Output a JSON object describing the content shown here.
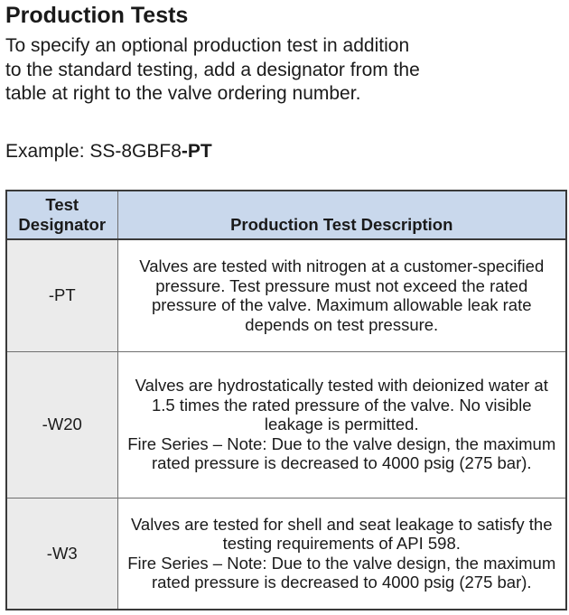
{
  "heading": "Production Tests",
  "intro": "To specify an optional production test in addition to the standard testing, add a designator from the table at right to the valve ordering number.",
  "example": {
    "prefix": "Example: SS-8GBF8",
    "suffix": "-PT"
  },
  "table": {
    "headers": {
      "designator_line1": "Test",
      "designator_line2": "Designator",
      "description": "Production Test Description"
    },
    "rows": [
      {
        "designator": "-PT",
        "description": [
          "Valves are tested with nitrogen at a customer-specified pressure. Test pressure must not exceed the rated pressure of the valve. Maximum allowable leak rate depends on test pressure."
        ]
      },
      {
        "designator": "-W20",
        "description": [
          "Valves are hydrostatically tested with deionized water at 1.5 times the rated pressure of the valve. No visible leakage is permitted.",
          "Fire Series – Note: Due to the valve design, the maximum rated pressure is decreased to 4000 psig (275 bar)."
        ]
      },
      {
        "designator": "-W3",
        "description": [
          "Valves are tested for shell and seat leakage to satisfy the testing requirements of API 598.",
          "Fire Series – Note: Due to the valve design, the maximum rated pressure is decreased to 4000 psig (275 bar)."
        ]
      }
    ]
  },
  "colors": {
    "header_fill": "#c9d8ec",
    "designator_fill": "#ebebeb",
    "border": "#3a3a3a"
  }
}
